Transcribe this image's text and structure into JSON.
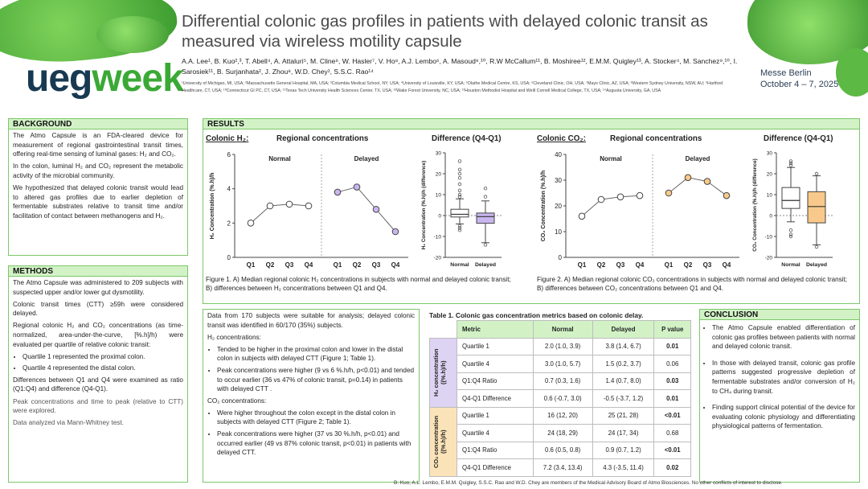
{
  "header": {
    "logo_a": "ueg",
    "logo_b": "week",
    "title": "Differential colonic gas profiles in patients with delayed colonic transit as measured via wireless motility capsule",
    "authors": "A.A. Lee¹, B. Kuo²,³, T. Abell⁴, A. Attaluri⁵, M. Cline⁶, W. Hasler⁷, V. Ho⁸, A.J. Lembo⁶, A. Masoud⁹,¹⁰, R.W McCallum¹¹, B. Moshiree¹², E.M.M. Quigley¹³, A. Stocker⁴, M. Sanchez⁹,¹⁰, I. Sarosiek¹¹, B. Surjanhata², J. Zhou⁸, W.D. Chey¹, S.S.C. Rao¹⁴",
    "affiliations": "¹University of Michigan, MI, USA; ²Massachusetts General Hospital, MA, USA; ³Columbia Medical School, NY, USA; ⁴University of Louisville, KY, USA; ⁵Olathe Medical Centre, KS, USA; ⁶Cleveland Clinic, OH, USA; ⁷Mayo Clinic, AZ, USA; ⁸Western Sydney University, NSW, AU; ⁹Hartford Healthcare, CT, USA; ¹⁰Connecticut GI PC, CT, USA; ¹¹Texas Tech University Health Sciences Center, TX, USA; ¹²Wake Forest University, NC, USA; ¹³Houston Methodist Hospital and Weill Cornell Medical College, TX, USA; ¹⁴Augusta University, GA, USA",
    "event_line1": "Messe Berlin",
    "event_line2": "October 4 – 7, 2025"
  },
  "background": {
    "heading": "BACKGROUND",
    "p1": "The Atmo Capsule is an FDA-cleared device for measurement of regional gastrointestinal transit times, offering real-time sensing of luminal gases: H₂ and CO₂.",
    "p2": "In the colon, luminal H₂ and CO₂ represent the metabolic activity of the microbial community.",
    "p3": "We hypothesized that delayed colonic transit would lead to altered gas profiles due to earlier depletion of fermentable substrates relative to transit time and/or facilitation of contact between methanogens and H₂."
  },
  "methods": {
    "heading": "METHODS",
    "p1": "The Atmo Capsule was administered to 209 subjects with suspected upper and/or lower gut dysmotility.",
    "p2": "Colonic transit times (CTT) ≥59h were considered delayed.",
    "p3": "Regional colonic H₂ and CO₂ concentrations (as time-normalized, area-under-the-curve, [%.h]/h) were evaluated per quartile of relative colonic transit:",
    "b1": "Quartile 1 represented the proximal colon.",
    "b2": "Quartile 4 represented the distal colon.",
    "p4": "Differences between Q1 and Q4 were examined as ratio (Q1:Q4) and difference (Q4-Q1).",
    "p5": "Peak concentrations and time to peak (relative to CTT) were explored.",
    "p6": "Data analyzed via Mann-Whitney test."
  },
  "results": {
    "heading": "RESULTS",
    "h2_label": "Colonic H₂:",
    "co2_label": "Colonic CO₂:",
    "regional_title": "Regional concentrations",
    "diff_title": "Difference (Q4-Q1)",
    "normal_label": "Normal",
    "delayed_label": "Delayed",
    "h2_ylabel": "H₂ Concentration (%.h)/h",
    "h2_diff_ylabel": "H₂ Concentration (%.h)/h (difference)",
    "co2_ylabel": "CO₂ Concentration (%.h)/h",
    "co2_diff_ylabel": "CO₂ Concentration (%.h)/h (difference)",
    "fig1_caption": "Figure 1. A) Median regional colonic H₂ concentrations in subjects with normal and delayed colonic transit; B) differences between H₂ concentrations between Q1 and Q4.",
    "fig2_caption": "Figure 2. A) Median regional colonic CO₂ concentrations in subjects with normal and delayed colonic transit; B) differences between CO₂ concentrations between Q1 and Q4."
  },
  "findings": {
    "p1": "Data from 170 subjects were suitable for analysis; delayed colonic transit was identified in 60/170 (35%) subjects.",
    "h2_head": "H₂ concentrations:",
    "h2_b1": "Tended to be higher in the proximal colon and lower in the distal colon in subjects with delayed CTT (Figure 1; Table 1).",
    "h2_b2": "Peak concentrations were higher (9 vs 6 %.h/h, p<0.01) and tended to occur earlier (36 vs 47% of colonic transit, p=0.14) in patients with delayed CTT .",
    "co2_head": "CO₂ concentrations:",
    "co2_b1": "Were higher throughout the colon except in the distal colon in subjects with delayed CTT (Figure 2; Table 1).",
    "co2_b2": "Peak concentrations were higher (37 vs 30 %.h/h, p<0.01) and occurred earlier (49 vs 87% colonic transit, p<0.01) in patients with delayed CTT."
  },
  "table1": {
    "caption": "Table 1. Colonic gas concentration metrics based on colonic delay.",
    "headers": [
      "Metric",
      "Normal",
      "Delayed",
      "P value"
    ],
    "group_h2": "H₂ concentration ((%.h)/h)",
    "group_co2": "CO₂ concentration ((%.h)/h)",
    "rows_h2": [
      {
        "metric": "Quartile 1",
        "normal": "2.0 (1.0, 3.9)",
        "delayed": "3.8 (1.4, 6.7)",
        "p": "0.01",
        "bold": true
      },
      {
        "metric": "Quartile 4",
        "normal": "3.0 (1.0, 5.7)",
        "delayed": "1.5 (0.2, 3.7)",
        "p": "0.06",
        "bold": false
      },
      {
        "metric": "Q1:Q4 Ratio",
        "normal": "0.7 (0.3, 1.6)",
        "delayed": "1.4 (0.7, 8.0)",
        "p": "0.03",
        "bold": true
      },
      {
        "metric": "Q4-Q1 Difference",
        "normal": "0.6 (-0.7, 3.0)",
        "delayed": "-0.5 (-3.7, 1.2)",
        "p": "0.01",
        "bold": true
      }
    ],
    "rows_co2": [
      {
        "metric": "Quartile 1",
        "normal": "16 (12, 20)",
        "delayed": "25 (21, 28)",
        "p": "<0.01",
        "bold": true
      },
      {
        "metric": "Quartile 4",
        "normal": "24 (18, 29)",
        "delayed": "24 (17, 34)",
        "p": "0.68",
        "bold": false
      },
      {
        "metric": "Q1:Q4 Ratio",
        "normal": "0.6 (0.5, 0.8)",
        "delayed": "0.9 (0.7, 1.2)",
        "p": "<0.01",
        "bold": true
      },
      {
        "metric": "Q4-Q1 Difference",
        "normal": "7.2 (3.4, 13.4)",
        "delayed": "4.3 (-3.5, 11.4)",
        "p": "0.02",
        "bold": true
      }
    ]
  },
  "conclusion": {
    "heading": "CONCLUSION",
    "b1": "The Atmo Capsule enabled differentiation of colonic gas profiles between patients with normal and delayed colonic transit.",
    "b2": "In those with delayed transit, colonic gas profile patterns suggested progressive depletion of fermentable substrates and/or conversion of H₂ to CH₄ during transit.",
    "b3": "Finding support clinical potential of the device for evaluating colonic physiology and differentiating physiological patterns of fermentation."
  },
  "footer": "B. Kuo, A.L. Lembo, E.M.M. Quigley, S.S.C. Rao and W.D. Chey are members of the Medical Advisory Board of Atmo Biosciences. No other conflicts of interest to disclose.",
  "colors": {
    "normal": "#ffffff",
    "delayed_h2": "#c9b6ef",
    "delayed_co2": "#f8c98a",
    "line": "#555555",
    "accent": "#7cc76a"
  },
  "chart_data": [
    {
      "type": "line",
      "title": "Regional concentrations",
      "ylabel": "H₂ Concentration (%.h)/h",
      "ylim": [
        0,
        6
      ],
      "yticks": [
        0,
        2,
        4,
        6
      ],
      "categories": [
        "Q1",
        "Q2",
        "Q3",
        "Q4"
      ],
      "series": [
        {
          "name": "Normal",
          "values": [
            2.0,
            3.0,
            3.1,
            3.0
          ]
        },
        {
          "name": "Delayed",
          "values": [
            3.8,
            4.1,
            2.8,
            1.5
          ]
        }
      ]
    },
    {
      "type": "box",
      "title": "Difference (Q4-Q1)",
      "ylabel": "H₂ Concentration (%.h)/h (difference)",
      "ylim": [
        -20,
        30
      ],
      "yticks": [
        -20,
        -10,
        0,
        10,
        20,
        30
      ],
      "categories": [
        "Normal",
        "Delayed"
      ],
      "boxes": [
        {
          "whisker_low": -4,
          "q1": -0.7,
          "median": 0.6,
          "q3": 3.0,
          "whisker_high": 8,
          "outliers": [
            -5,
            -6,
            -7,
            9,
            10,
            12,
            15,
            18,
            20,
            22,
            26
          ]
        },
        {
          "whisker_low": -13,
          "q1": -3.7,
          "median": -0.5,
          "q3": 1.2,
          "whisker_high": 7,
          "outliers": [
            -14,
            9,
            13
          ]
        }
      ]
    },
    {
      "type": "line",
      "title": "Regional concentrations",
      "ylabel": "CO₂ Concentration (%.h)/h",
      "ylim": [
        0,
        40
      ],
      "yticks": [
        0,
        10,
        20,
        30,
        40
      ],
      "categories": [
        "Q1",
        "Q2",
        "Q3",
        "Q4"
      ],
      "series": [
        {
          "name": "Normal",
          "values": [
            16,
            22.5,
            23.5,
            24
          ]
        },
        {
          "name": "Delayed",
          "values": [
            25,
            31,
            29.5,
            24
          ]
        }
      ]
    },
    {
      "type": "box",
      "title": "Difference (Q4-Q1)",
      "ylabel": "CO₂ Concentration (%.h)/h (difference)",
      "ylim": [
        -20,
        30
      ],
      "yticks": [
        -20,
        -10,
        0,
        10,
        20,
        30
      ],
      "categories": [
        "Normal",
        "Delayed"
      ],
      "boxes": [
        {
          "whisker_low": -3,
          "q1": 3.4,
          "median": 7.2,
          "q3": 13.4,
          "whisker_high": 23,
          "outliers": [
            -7,
            -9,
            -10,
            24,
            25,
            26
          ]
        },
        {
          "whisker_low": -14,
          "q1": -3.5,
          "median": 4.3,
          "q3": 11.4,
          "whisker_high": 19,
          "outliers": [
            -15,
            20
          ]
        }
      ]
    }
  ]
}
